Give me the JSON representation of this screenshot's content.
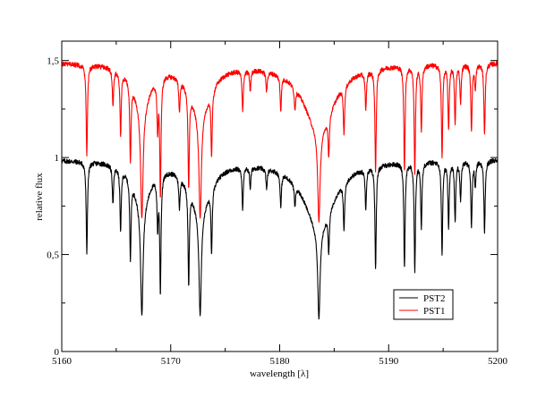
{
  "chart_data": {
    "type": "line",
    "title": "",
    "xlabel": "wavelength [λ]",
    "ylabel": "relative flux",
    "xlim": [
      5160,
      5200
    ],
    "ylim": [
      0,
      1.6
    ],
    "x_ticks": [
      5160,
      5170,
      5180,
      5190,
      5200
    ],
    "x_tick_labels": [
      "5160",
      "5170",
      "5180",
      "5190",
      "5200"
    ],
    "x_minor_step": 5,
    "y_ticks": [
      0,
      0.5,
      1,
      1.5
    ],
    "y_tick_labels": [
      "0",
      "0,5",
      "1",
      "1,5"
    ],
    "y_minor_step": 0.25,
    "grid": false,
    "legend": {
      "placement": "bottom-right",
      "entries": [
        "PST2",
        "PST1"
      ]
    },
    "series": [
      {
        "name": "PST2",
        "color": "#000000",
        "continuum": 0.99,
        "offset": 0.0
      },
      {
        "name": "PST1",
        "color": "#ff0000",
        "continuum": 0.99,
        "offset": 0.5
      }
    ],
    "absorption_lines_min_flux": [
      [
        5162.3,
        0.51
      ],
      [
        5164.7,
        0.79
      ],
      [
        5165.4,
        0.65
      ],
      [
        5166.3,
        0.53
      ],
      [
        5167.35,
        0.19
      ],
      [
        5168.8,
        0.7
      ],
      [
        5169.05,
        0.32
      ],
      [
        5170.8,
        0.81
      ],
      [
        5171.65,
        0.4
      ],
      [
        5172.7,
        0.19
      ],
      [
        5173.75,
        0.6
      ],
      [
        5176.6,
        0.77
      ],
      [
        5177.3,
        0.88
      ],
      [
        5178.8,
        0.88
      ],
      [
        5180.1,
        0.8
      ],
      [
        5181.4,
        0.86
      ],
      [
        5183.6,
        0.17
      ],
      [
        5184.5,
        0.7
      ],
      [
        5185.9,
        0.71
      ],
      [
        5187.9,
        0.78
      ],
      [
        5188.8,
        0.44
      ],
      [
        5191.45,
        0.44
      ],
      [
        5192.4,
        0.42
      ],
      [
        5193.0,
        0.65
      ],
      [
        5194.9,
        0.51
      ],
      [
        5195.5,
        0.65
      ],
      [
        5196.1,
        0.68
      ],
      [
        5196.6,
        0.79
      ],
      [
        5197.6,
        0.65
      ],
      [
        5197.95,
        0.86
      ],
      [
        5198.8,
        0.62
      ]
    ]
  }
}
